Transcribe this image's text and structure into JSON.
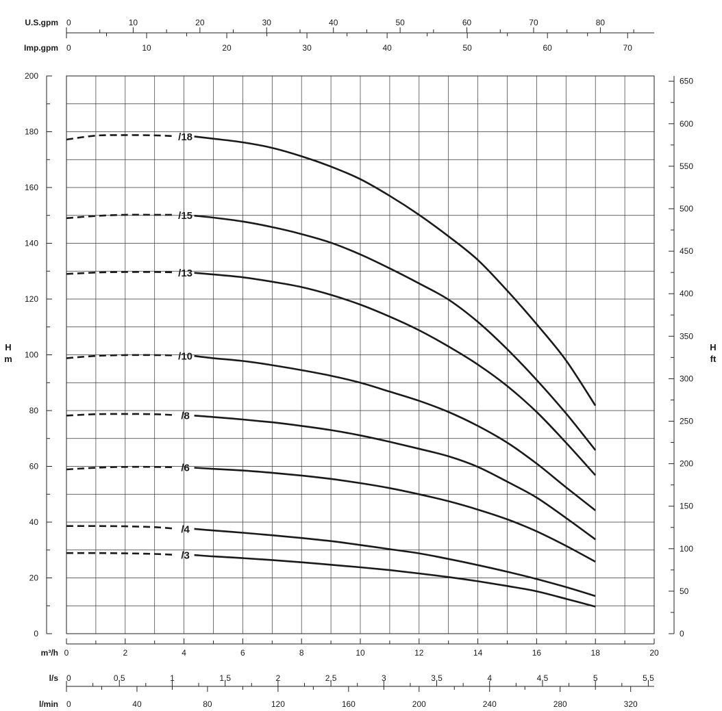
{
  "chart_data": {
    "type": "line",
    "title": "",
    "xlabel": "m³/h",
    "ylabel": "H m",
    "ylabel_right": "H ft",
    "xlim": [
      0,
      20
    ],
    "ylim": [
      0,
      200
    ],
    "y2lim": [
      0,
      656.2
    ],
    "grid": true,
    "x_ticks": [
      "0",
      "2",
      "4",
      "6",
      "8",
      "10",
      "12",
      "14",
      "16",
      "18",
      "20"
    ],
    "y_ticks": [
      "0",
      "20",
      "40",
      "60",
      "80",
      "100",
      "120",
      "140",
      "160",
      "180",
      "200"
    ],
    "y2_ticks": [
      "0",
      "50",
      "100",
      "150",
      "200",
      "250",
      "300",
      "350",
      "400",
      "450",
      "500",
      "550",
      "600",
      "650"
    ],
    "aux_axes": [
      {
        "label": "U.S.gpm",
        "ticks": [
          "0",
          "10",
          "20",
          "30",
          "40",
          "50",
          "60",
          "70",
          "80"
        ],
        "m3h_per_unit": 0.2271,
        "major_step": 10,
        "minor_step": 5,
        "position": "top"
      },
      {
        "label": "Imp.gpm",
        "ticks": [
          "0",
          "10",
          "20",
          "30",
          "40",
          "50",
          "60",
          "70"
        ],
        "m3h_per_unit": 0.2728,
        "major_step": 10,
        "minor_step": 5,
        "position": "top"
      },
      {
        "label": "l/s",
        "ticks": [
          "0",
          "0,5",
          "1",
          "1,5",
          "2",
          "2,5",
          "3",
          "3,5",
          "4",
          "4,5",
          "5",
          "5,5"
        ],
        "m3h_per_unit": 3.6,
        "major_step": 0.5,
        "minor_step": 0.25,
        "position": "bottom"
      },
      {
        "label": "l/min",
        "ticks": [
          "0",
          "40",
          "80",
          "120",
          "160",
          "200",
          "240",
          "280",
          "320"
        ],
        "m3h_per_unit": 0.06,
        "major_step": 40,
        "minor_step": 20,
        "position": "bottom"
      }
    ],
    "series": [
      {
        "name": "/18",
        "dashed": {
          "x": [
            0,
            1,
            2,
            3,
            4
          ],
          "y": [
            177.2,
            178.6,
            178.8,
            178.7,
            178.4
          ]
        },
        "solid": {
          "x": [
            4,
            5,
            6,
            7,
            8,
            9,
            10,
            11,
            12,
            13,
            14,
            15,
            16,
            17,
            18
          ],
          "y": [
            178.3,
            177.5,
            176.2,
            174.2,
            171.2,
            167.5,
            163,
            157,
            150.2,
            142.5,
            134,
            123,
            111,
            98,
            81.8
          ]
        }
      },
      {
        "name": "/15",
        "dashed": {
          "x": [
            0,
            1,
            2,
            3,
            4
          ],
          "y": [
            149,
            149.8,
            150.2,
            150.2,
            150.2
          ]
        },
        "solid": {
          "x": [
            4,
            5,
            6,
            7,
            8,
            9,
            10,
            11,
            12,
            13,
            14,
            15,
            16,
            17,
            18
          ],
          "y": [
            149.9,
            149.2,
            147.8,
            145.8,
            143.3,
            140.2,
            136,
            131,
            125.6,
            119.8,
            111.8,
            102,
            91,
            79,
            65.8
          ]
        }
      },
      {
        "name": "/13",
        "dashed": {
          "x": [
            0,
            1,
            2,
            3,
            4
          ],
          "y": [
            129,
            129.5,
            129.7,
            129.7,
            129.6
          ]
        },
        "solid": {
          "x": [
            4,
            5,
            6,
            7,
            8,
            9,
            10,
            11,
            12,
            13,
            14,
            15,
            16,
            17,
            18
          ],
          "y": [
            129.4,
            128.8,
            127.8,
            126.2,
            124.3,
            121.5,
            118,
            113.7,
            108.8,
            103,
            96.5,
            88.8,
            79.5,
            68.5,
            56.8
          ]
        }
      },
      {
        "name": "/10",
        "dashed": {
          "x": [
            0,
            1,
            2,
            3,
            4
          ],
          "y": [
            98.8,
            99.6,
            99.9,
            99.9,
            99.8
          ]
        },
        "solid": {
          "x": [
            4,
            5,
            6,
            7,
            8,
            9,
            10,
            11,
            12,
            13,
            14,
            15,
            16,
            17,
            18
          ],
          "y": [
            99.6,
            98.8,
            97.8,
            96.3,
            94.5,
            92.5,
            90,
            86.8,
            83.5,
            79.5,
            74.5,
            68.5,
            61,
            52.5,
            44.2
          ]
        }
      },
      {
        "name": "/8",
        "dashed": {
          "x": [
            0,
            1,
            2,
            3,
            4
          ],
          "y": [
            78.2,
            78.7,
            78.8,
            78.7,
            78.4
          ]
        },
        "solid": {
          "x": [
            4,
            5,
            6,
            7,
            8,
            9,
            10,
            11,
            12,
            13,
            14,
            15,
            16,
            17,
            18
          ],
          "y": [
            78.2,
            77.7,
            76.8,
            75.8,
            74.5,
            73,
            71.1,
            68.8,
            66.3,
            63.6,
            59.8,
            54.5,
            48.8,
            41.5,
            33.8
          ]
        }
      },
      {
        "name": "/6",
        "dashed": {
          "x": [
            0,
            1,
            2,
            3,
            4
          ],
          "y": [
            58.9,
            59.5,
            59.8,
            59.8,
            59.7
          ]
        },
        "solid": {
          "x": [
            4,
            5,
            6,
            7,
            8,
            9,
            10,
            11,
            12,
            13,
            14,
            15,
            16,
            17,
            18
          ],
          "y": [
            59.5,
            59.1,
            58.5,
            57.7,
            56.7,
            55.5,
            54,
            52.2,
            50,
            47.5,
            44.5,
            41,
            36.7,
            31.5,
            25.8
          ]
        }
      },
      {
        "name": "/4",
        "dashed": {
          "x": [
            0,
            1,
            2,
            3,
            4
          ],
          "y": [
            38.6,
            38.6,
            38.5,
            38.2,
            37.7
          ]
        },
        "solid": {
          "x": [
            4,
            5,
            6,
            7,
            8,
            9,
            10,
            11,
            12,
            13,
            14,
            15,
            16,
            17,
            18
          ],
          "y": [
            37.6,
            37,
            36.2,
            35.3,
            34.3,
            33.2,
            31.8,
            30.3,
            28.8,
            26.8,
            24.6,
            22.2,
            19.6,
            16.7,
            13.5
          ]
        }
      },
      {
        "name": "/3",
        "dashed": {
          "x": [
            0,
            1,
            2,
            3,
            4
          ],
          "y": [
            28.9,
            28.9,
            28.8,
            28.6,
            28.3
          ]
        },
        "solid": {
          "x": [
            4,
            5,
            6,
            7,
            8,
            9,
            10,
            11,
            12,
            13,
            14,
            15,
            16,
            17,
            18
          ],
          "y": [
            28.2,
            27.7,
            27.1,
            26.4,
            25.6,
            24.7,
            23.8,
            22.8,
            21.6,
            20.3,
            18.8,
            17.1,
            15.2,
            12.5,
            9.7
          ]
        }
      }
    ],
    "ft_per_m": 3.28084
  }
}
